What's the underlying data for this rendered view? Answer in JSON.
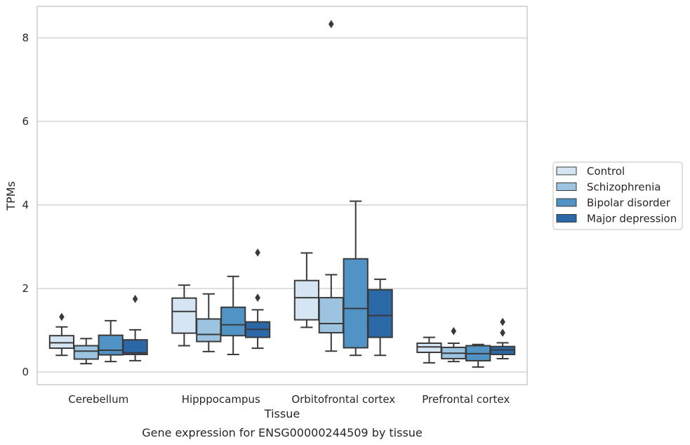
{
  "chart_data": {
    "type": "box",
    "caption": "Gene expression for ENSG00000244509 by tissue",
    "xlabel": "Tissue",
    "ylabel": "TPMs",
    "ylim": [
      -0.3,
      8.75
    ],
    "yticks": [
      0,
      2,
      4,
      6,
      8
    ],
    "grid": "horizontal",
    "legend_position": "right",
    "categories": [
      "Cerebellum",
      "Hipppocampus",
      "Orbitofrontal cortex",
      "Prefrontal cortex"
    ],
    "series": [
      {
        "name": "Control",
        "color": "#d6e5f3",
        "boxes": [
          {
            "whislo": 0.4,
            "q1": 0.57,
            "med": 0.7,
            "q3": 0.87,
            "whishi": 1.08,
            "fliers": [
              1.32
            ]
          },
          {
            "whislo": 0.63,
            "q1": 0.93,
            "med": 1.45,
            "q3": 1.77,
            "whishi": 2.08,
            "fliers": []
          },
          {
            "whislo": 1.07,
            "q1": 1.25,
            "med": 1.78,
            "q3": 2.19,
            "whishi": 2.85,
            "fliers": []
          },
          {
            "whislo": 0.22,
            "q1": 0.47,
            "med": 0.6,
            "q3": 0.69,
            "whishi": 0.83,
            "fliers": []
          }
        ]
      },
      {
        "name": "Schizophrenia",
        "color": "#9cc3e0",
        "boxes": [
          {
            "whislo": 0.2,
            "q1": 0.31,
            "med": 0.5,
            "q3": 0.63,
            "whishi": 0.8,
            "fliers": []
          },
          {
            "whislo": 0.49,
            "q1": 0.73,
            "med": 0.9,
            "q3": 1.27,
            "whishi": 1.87,
            "fliers": []
          },
          {
            "whislo": 0.5,
            "q1": 0.94,
            "med": 1.16,
            "q3": 1.78,
            "whishi": 2.33,
            "fliers": [
              8.33
            ]
          },
          {
            "whislo": 0.25,
            "q1": 0.32,
            "med": 0.45,
            "q3": 0.59,
            "whishi": 0.69,
            "fliers": [
              0.98
            ]
          }
        ]
      },
      {
        "name": "Bipolar disorder",
        "color": "#5193c5",
        "boxes": [
          {
            "whislo": 0.25,
            "q1": 0.41,
            "med": 0.52,
            "q3": 0.88,
            "whishi": 1.23,
            "fliers": []
          },
          {
            "whislo": 0.42,
            "q1": 0.87,
            "med": 1.13,
            "q3": 1.55,
            "whishi": 2.29,
            "fliers": []
          },
          {
            "whislo": 0.4,
            "q1": 0.58,
            "med": 1.52,
            "q3": 2.71,
            "whishi": 4.09,
            "fliers": []
          },
          {
            "whislo": 0.12,
            "q1": 0.27,
            "med": 0.44,
            "q3": 0.63,
            "whishi": 0.66,
            "fliers": []
          }
        ]
      },
      {
        "name": "Major depression",
        "color": "#2b68a8",
        "boxes": [
          {
            "whislo": 0.27,
            "q1": 0.42,
            "med": 0.46,
            "q3": 0.77,
            "whishi": 1.01,
            "fliers": [
              1.75
            ]
          },
          {
            "whislo": 0.57,
            "q1": 0.83,
            "med": 1.02,
            "q3": 1.2,
            "whishi": 1.49,
            "fliers": [
              1.78,
              2.86
            ]
          },
          {
            "whislo": 0.4,
            "q1": 0.83,
            "med": 1.35,
            "q3": 1.97,
            "whishi": 2.22,
            "fliers": []
          },
          {
            "whislo": 0.32,
            "q1": 0.42,
            "med": 0.53,
            "q3": 0.61,
            "whishi": 0.7,
            "fliers": [
              0.94,
              1.2
            ]
          }
        ]
      }
    ]
  }
}
